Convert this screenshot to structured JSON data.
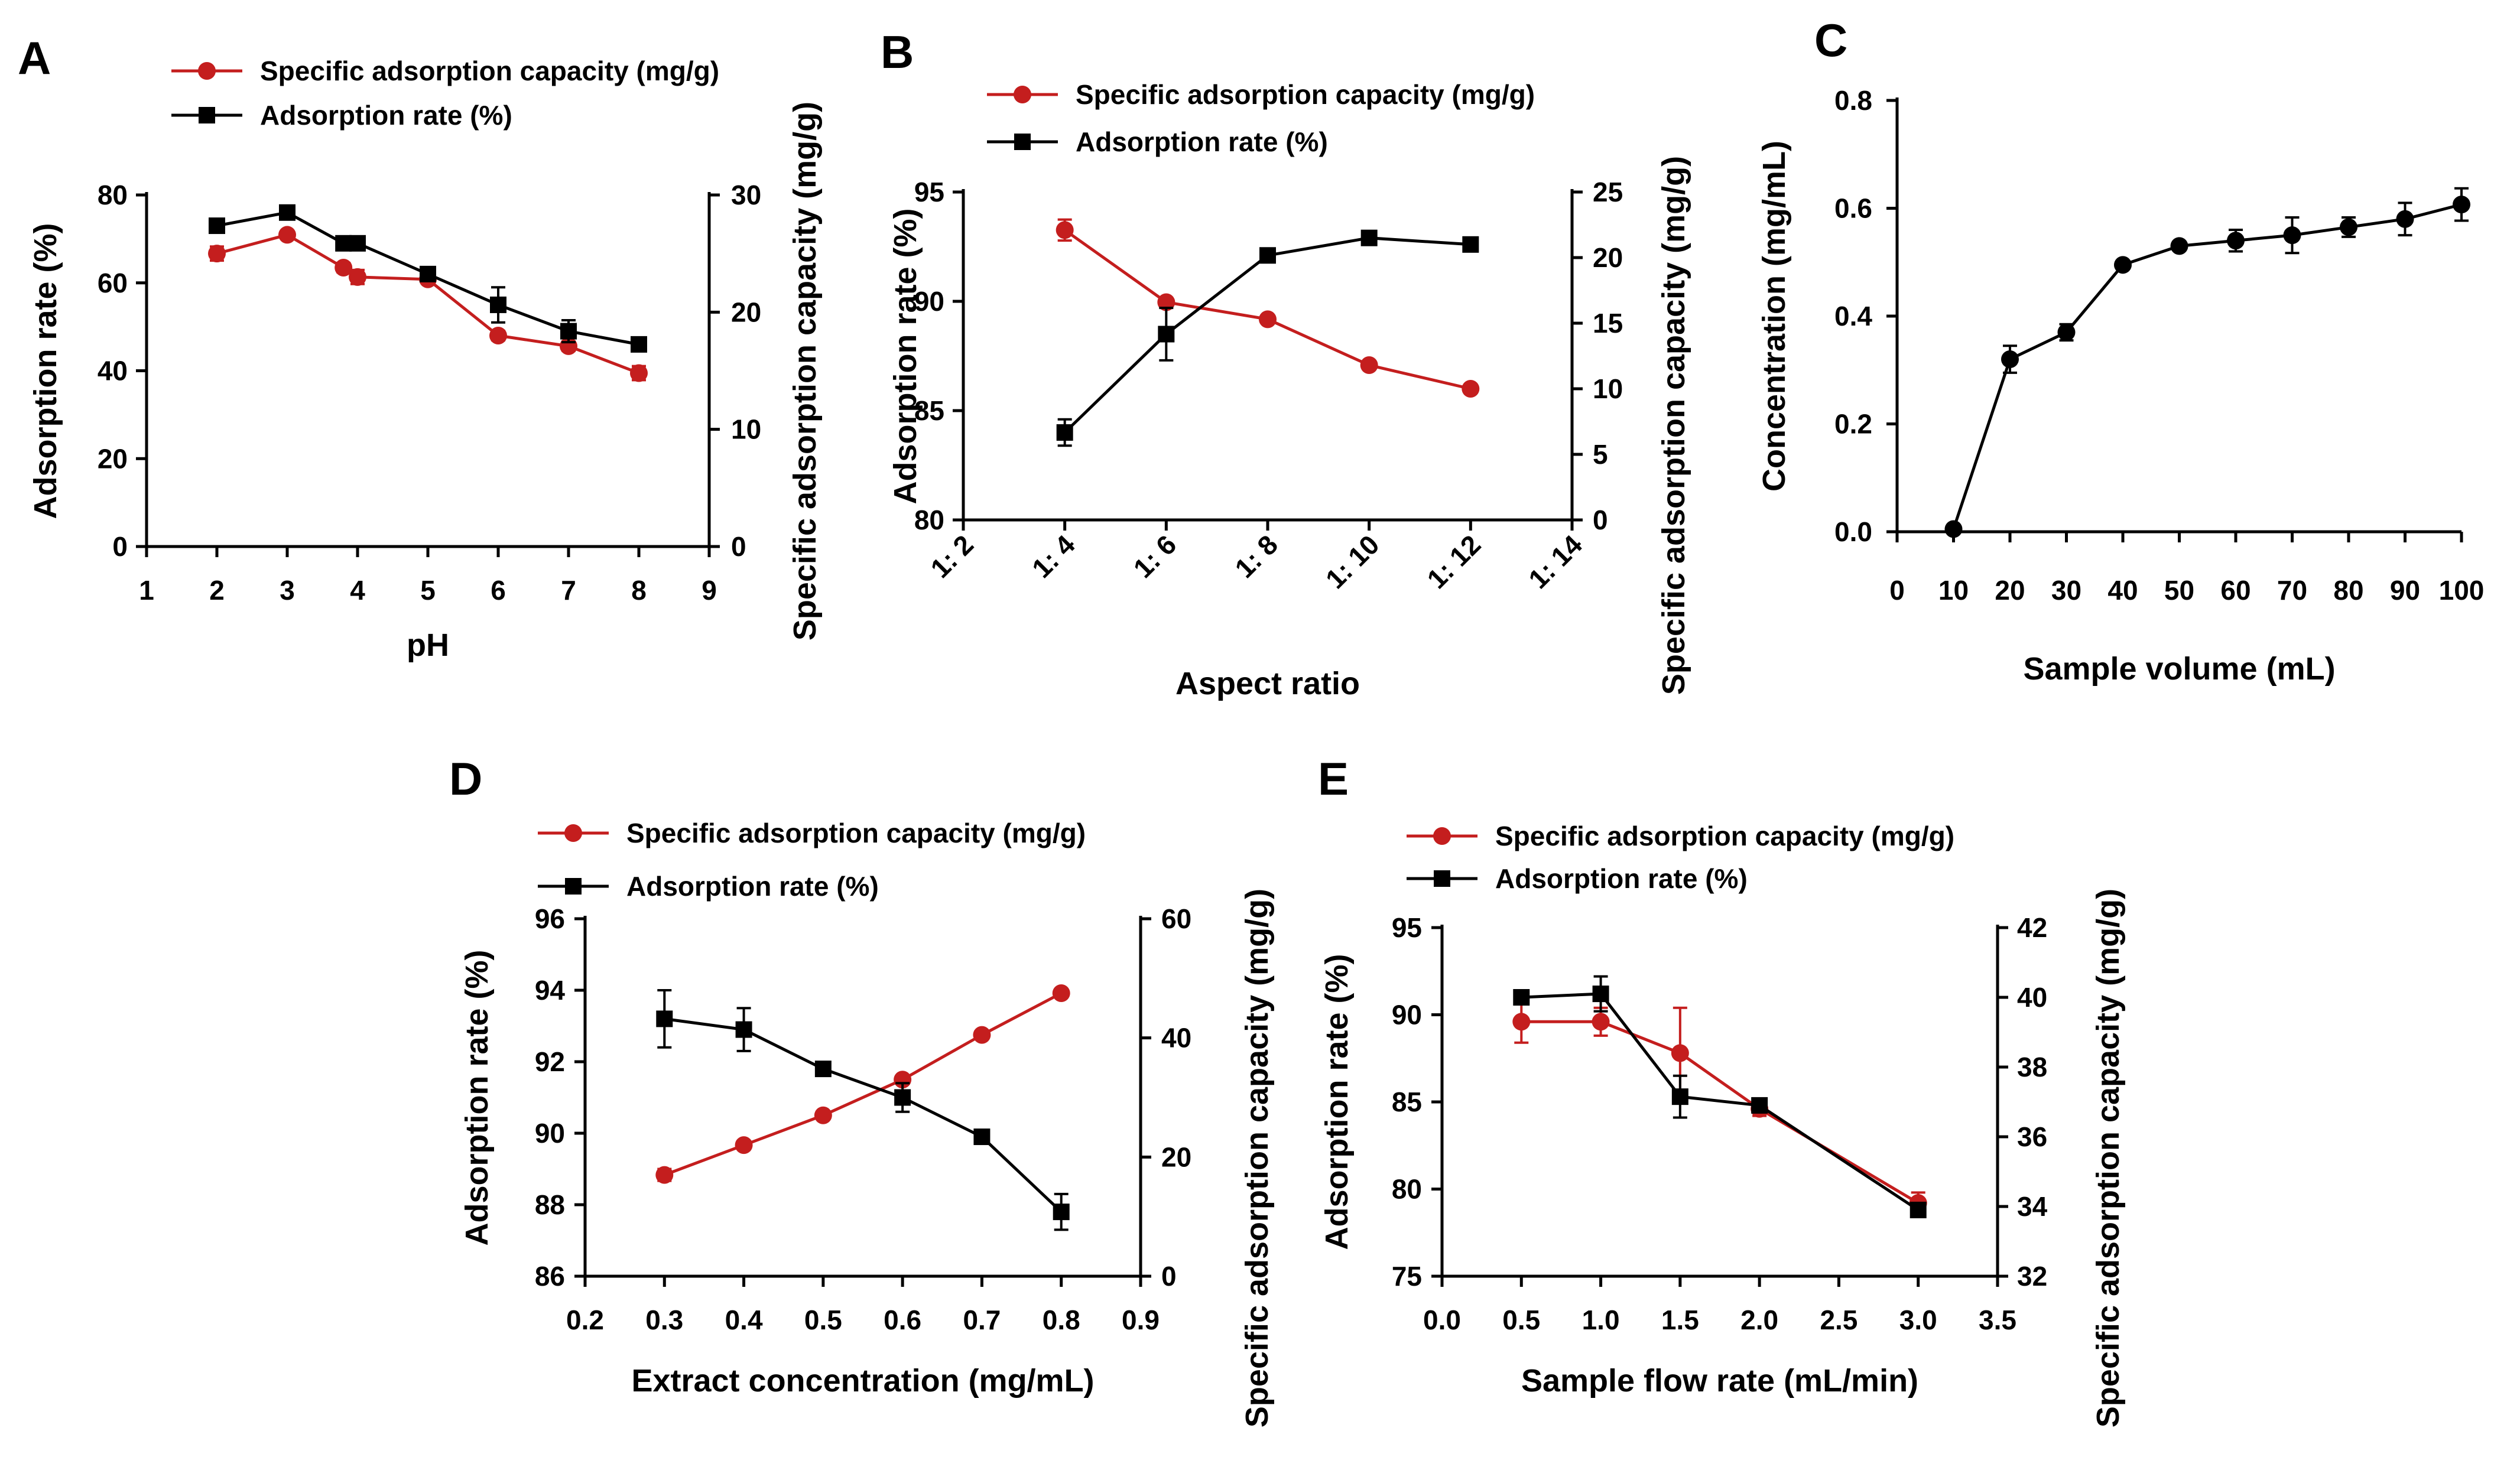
{
  "colors": {
    "red": "#c41e1e",
    "black": "#000000",
    "axis": "#000000"
  },
  "chart_data": [
    {
      "panel": "A",
      "type": "line",
      "xlabel": "pH",
      "ylabel_left": "Adsorption rate (%)",
      "ylabel_right": "Specific adsorption capacity (mg/g)",
      "xlim": [
        1,
        9
      ],
      "xticks": [
        1,
        2,
        3,
        4,
        5,
        6,
        7,
        8,
        9
      ],
      "ylim_left": [
        0,
        80
      ],
      "yticks_left": [
        0,
        20,
        40,
        60,
        80
      ],
      "ylim_right": [
        0,
        30
      ],
      "yticks_right": [
        0,
        10,
        20,
        30
      ],
      "legend": [
        "Specific adsorption capacity (mg/g)",
        "Adsorption rate (%)"
      ],
      "series": [
        {
          "name": "Specific adsorption capacity (mg/g)",
          "axis": "right",
          "color": "red",
          "marker": "circle",
          "x": [
            2,
            3,
            3.8,
            4,
            5,
            6,
            7,
            8
          ],
          "values": [
            25.0,
            26.6,
            23.8,
            23.0,
            22.8,
            18.0,
            17.1,
            14.8
          ],
          "errors": [
            0.6,
            0.3,
            0.4,
            0.6,
            0.3,
            0.4,
            0.4,
            0.6
          ]
        },
        {
          "name": "Adsorption rate (%)",
          "axis": "left",
          "color": "black",
          "marker": "square",
          "x": [
            2,
            3,
            3.8,
            4,
            5,
            6,
            7,
            8
          ],
          "values": [
            73,
            76,
            69,
            69,
            62,
            55,
            49,
            46
          ],
          "errors": [
            0.8,
            0.8,
            0.8,
            0.8,
            1.0,
            4.0,
            2.5,
            0.8
          ]
        }
      ]
    },
    {
      "panel": "B",
      "type": "line",
      "xlabel": "Aspect ratio",
      "ylabel_left": "Adsorption rate (%)",
      "ylabel_right": "Specific adsorption capacity (mg/g)",
      "xlim": [
        2,
        14
      ],
      "xticks": [
        2,
        4,
        6,
        8,
        10,
        12,
        14
      ],
      "xticklabels": [
        "1: 2",
        "1: 4",
        "1: 6",
        "1: 8",
        "1: 10",
        "1: 12",
        "1: 14"
      ],
      "ylim_left": [
        80,
        95
      ],
      "yticks_left": [
        80,
        85,
        90,
        95
      ],
      "ylim_right": [
        0,
        25
      ],
      "yticks_right": [
        0,
        5,
        10,
        15,
        20,
        25
      ],
      "legend": [
        "Specific adsorption capacity (mg/g)",
        "Adsorption rate (%)"
      ],
      "series": [
        {
          "name": "Specific adsorption capacity (mg/g)",
          "axis": "right",
          "color": "red",
          "marker": "circle",
          "x": [
            4,
            6,
            8,
            10,
            12
          ],
          "values": [
            22.1,
            16.6,
            15.3,
            11.8,
            10.0
          ],
          "errors": [
            0.8,
            0.3,
            0.3,
            0.2,
            0.2
          ]
        },
        {
          "name": "Adsorption rate (%)",
          "axis": "left",
          "color": "black",
          "marker": "square",
          "x": [
            4,
            6,
            8,
            10,
            12
          ],
          "values": [
            84.0,
            88.5,
            92.1,
            92.9,
            92.6
          ],
          "errors": [
            0.6,
            1.2,
            0.1,
            0.1,
            0.1
          ]
        }
      ]
    },
    {
      "panel": "C",
      "type": "line",
      "xlabel": "Sample volume (mL)",
      "ylabel_left": "Concentration (mg/mL)",
      "xlim": [
        0,
        100
      ],
      "xticks": [
        0,
        10,
        20,
        30,
        40,
        50,
        60,
        70,
        80,
        90,
        100
      ],
      "xticklabels": [
        "0",
        "10",
        "20",
        "30",
        "40",
        "50",
        "60",
        "70",
        "80",
        "90",
        "100"
      ],
      "ylim_left": [
        0,
        0.8
      ],
      "yticks_left": [
        0.0,
        0.2,
        0.4,
        0.6,
        0.8
      ],
      "yticklabels_left": [
        "0.0",
        "0.2",
        "0.4",
        "0.6",
        "0.8"
      ],
      "series": [
        {
          "name": "Concentration",
          "axis": "left",
          "color": "black",
          "marker": "circle",
          "x": [
            10,
            20,
            30,
            40,
            50,
            60,
            70,
            80,
            90,
            100
          ],
          "values": [
            0.005,
            0.32,
            0.37,
            0.495,
            0.53,
            0.54,
            0.55,
            0.565,
            0.58,
            0.607
          ],
          "errors": [
            0,
            0.025,
            0.015,
            0.005,
            0.008,
            0.02,
            0.033,
            0.018,
            0.03,
            0.03
          ]
        }
      ]
    },
    {
      "panel": "D",
      "type": "line",
      "xlabel": "Extract concentration (mg/mL)",
      "ylabel_left": "Adsorption rate (%)",
      "ylabel_right": "Specific adsorption capacity (mg/g)",
      "xlim": [
        0.2,
        0.9
      ],
      "xticks": [
        0.2,
        0.3,
        0.4,
        0.5,
        0.6,
        0.7,
        0.8,
        0.9
      ],
      "xticklabels": [
        "0.2",
        "0.3",
        "0.4",
        "0.5",
        "0.6",
        "0.7",
        "0.8",
        "0.9"
      ],
      "ylim_left": [
        86,
        96
      ],
      "yticks_left": [
        86,
        88,
        90,
        92,
        94,
        96
      ],
      "ylim_right": [
        0,
        60
      ],
      "yticks_right": [
        0,
        20,
        40,
        60
      ],
      "legend": [
        "Specific adsorption capacity (mg/g)",
        "Adsorption rate (%)"
      ],
      "series": [
        {
          "name": "Specific adsorption capacity (mg/g)",
          "axis": "right",
          "color": "red",
          "marker": "circle",
          "x": [
            0.3,
            0.4,
            0.5,
            0.6,
            0.7,
            0.8
          ],
          "values": [
            17.0,
            22.0,
            27.0,
            33.0,
            40.5,
            47.5
          ],
          "errors": [
            1.0,
            0.3,
            0.3,
            0.3,
            0.3,
            0.3
          ]
        },
        {
          "name": "Adsorption rate (%)",
          "axis": "left",
          "color": "black",
          "marker": "square",
          "x": [
            0.3,
            0.4,
            0.5,
            0.6,
            0.7,
            0.8
          ],
          "values": [
            93.2,
            92.9,
            91.8,
            91.0,
            89.9,
            87.8
          ],
          "errors": [
            0.8,
            0.6,
            0.1,
            0.4,
            0.1,
            0.5
          ]
        }
      ]
    },
    {
      "panel": "E",
      "type": "line",
      "xlabel": "Sample flow rate (mL/min)",
      "ylabel_left": "Adsorption rate (%)",
      "ylabel_right": "Specific adsorption capacity (mg/g)",
      "xlim": [
        0,
        3.5
      ],
      "xticks": [
        0,
        0.5,
        1,
        1.5,
        2,
        2.5,
        3,
        3.5
      ],
      "xticklabels": [
        "0.0",
        "0.5",
        "1.0",
        "1.5",
        "2.0",
        "2.5",
        "3.0",
        "3.5"
      ],
      "ylim_left": [
        75,
        95
      ],
      "yticks_left": [
        75,
        80,
        85,
        90,
        95
      ],
      "ylim_right": [
        32,
        42
      ],
      "yticks_right": [
        32,
        34,
        36,
        38,
        40,
        42
      ],
      "legend": [
        "Specific adsorption capacity (mg/g)",
        "Adsorption rate (%)"
      ],
      "series": [
        {
          "name": "Specific adsorption capacity (mg/g)",
          "axis": "right",
          "color": "red",
          "marker": "circle",
          "x": [
            0.5,
            1.0,
            1.5,
            2.0,
            3.0
          ],
          "values": [
            39.3,
            39.3,
            38.4,
            36.8,
            34.1
          ],
          "errors": [
            0.6,
            0.4,
            1.3,
            0.2,
            0.3
          ]
        },
        {
          "name": "Adsorption rate (%)",
          "axis": "left",
          "color": "black",
          "marker": "square",
          "x": [
            0.5,
            1.0,
            1.5,
            2.0,
            3.0
          ],
          "values": [
            91.0,
            91.2,
            85.3,
            84.8,
            78.8
          ],
          "errors": [
            0.2,
            1.0,
            1.2,
            0.3,
            0.3
          ]
        }
      ]
    }
  ]
}
